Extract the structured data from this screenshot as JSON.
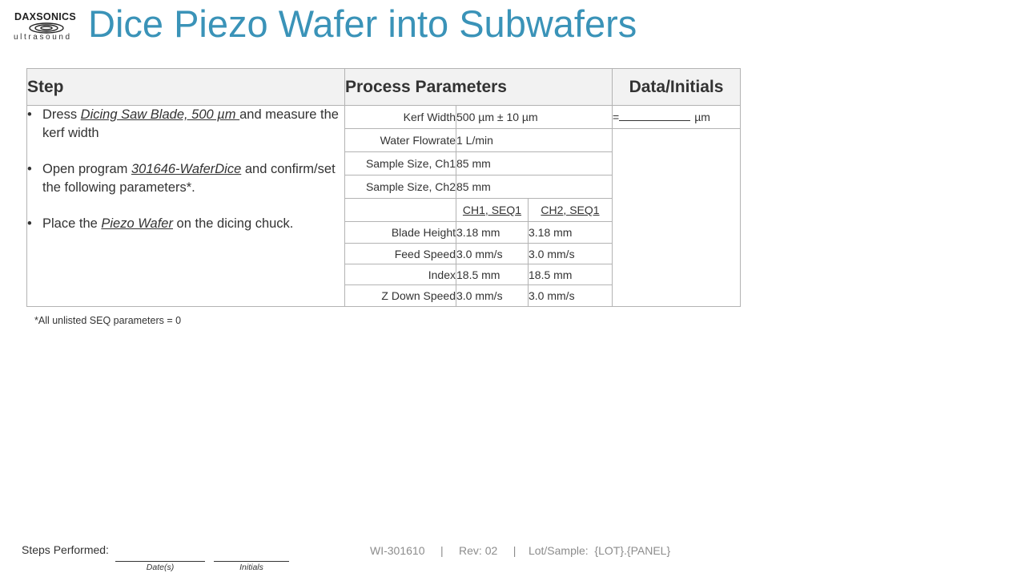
{
  "logo": {
    "top": "DAXSONICS",
    "bottom": "ultrasound"
  },
  "title": "Dice Piezo Wafer into Subwafers",
  "table": {
    "headers": {
      "step": "Step",
      "params": "Process Parameters",
      "data": "Data/Initials"
    },
    "steps": [
      {
        "pre": "Dress ",
        "em": "Dicing Saw Blade, 500 µm ",
        "post": "and measure the kerf width"
      },
      {
        "pre": "Open program ",
        "em": "301646-WaferDice",
        "post": " and confirm/set the following parameters*."
      },
      {
        "pre": "Place the ",
        "em": "Piezo Wafer",
        "post": " on the dicing chuck."
      }
    ],
    "params": [
      {
        "label": "Kerf Width",
        "value": "500 µm ± 10 µm"
      },
      {
        "label": "Water Flowrate",
        "value": "1 L/min"
      },
      {
        "label": "Sample Size, Ch1",
        "value": "85 mm"
      },
      {
        "label": "Sample Size, Ch2",
        "value": "85 mm"
      }
    ],
    "seq_headers": [
      "CH1, SEQ1",
      "CH2, SEQ1"
    ],
    "seq_params": [
      {
        "label": "Blade Height",
        "ch1": "3.18 mm",
        "ch2": "3.18 mm"
      },
      {
        "label": "Feed Speed",
        "ch1": "3.0 mm/s",
        "ch2": "3.0 mm/s"
      },
      {
        "label": "Index",
        "ch1": "18.5 mm",
        "ch2": "18.5 mm"
      },
      {
        "label": "Z Down Speed",
        "ch1": "3.0 mm/s",
        "ch2": "3.0 mm/s"
      }
    ],
    "kerf_entry": {
      "prefix": "=",
      "unit": "µm"
    }
  },
  "note": "*All unlisted SEQ parameters = 0",
  "footer": {
    "steps_performed": "Steps Performed:",
    "dates_caption": "Date(s)",
    "initials_caption": "Initials",
    "doc_id": "WI-301610",
    "rev": "Rev: 02",
    "lot": "Lot/Sample:  {LOT}.{PANEL}",
    "separator": "|"
  }
}
